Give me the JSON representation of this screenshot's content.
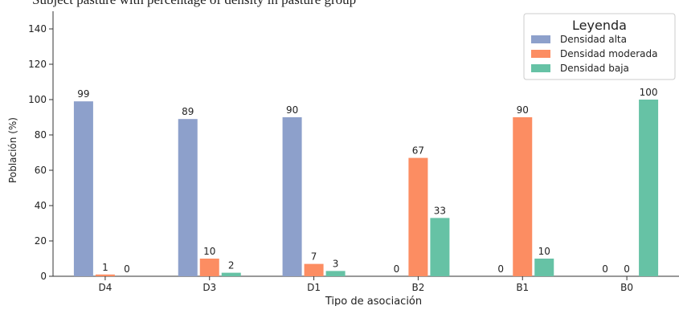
{
  "chart_data": {
    "type": "bar",
    "caption_fragment": "Subject pasture with percentage of density in pasture group",
    "categories": [
      "D4",
      "D3",
      "D1",
      "B2",
      "B1",
      "B0"
    ],
    "series": [
      {
        "name": "Densidad alta",
        "values": [
          99,
          89,
          90,
          0,
          0,
          0
        ],
        "color": "#8da0cb"
      },
      {
        "name": "Densidad moderada",
        "values": [
          1,
          10,
          7,
          67,
          90,
          0
        ],
        "color": "#fc8d62"
      },
      {
        "name": "Densidad baja",
        "values": [
          0,
          2,
          3,
          33,
          10,
          100
        ],
        "color": "#66c2a5"
      }
    ],
    "title": "",
    "xlabel": "Tipo de asociación",
    "ylabel": "Población (%)",
    "ylim": [
      0,
      150
    ],
    "yticks": [
      0,
      20,
      40,
      60,
      80,
      100,
      120,
      140
    ],
    "legend": {
      "title": "Leyenda",
      "placement": "top-right"
    },
    "grid": false
  }
}
